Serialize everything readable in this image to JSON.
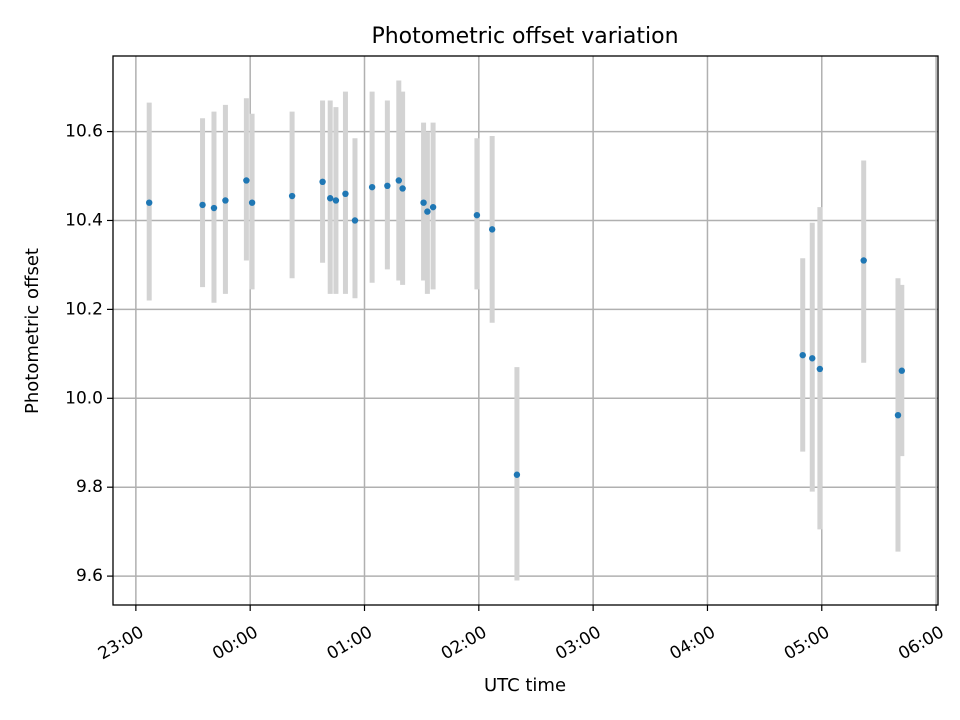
{
  "chart_data": {
    "type": "scatter",
    "title": "Photometric offset variation",
    "xlabel": "UTC time",
    "ylabel": "Photometric offset",
    "x_tick_labels": [
      "23:00",
      "00:00",
      "01:00",
      "02:00",
      "03:00",
      "04:00",
      "05:00",
      "06:00"
    ],
    "y_tick_labels": [
      "9.6",
      "9.8",
      "10.0",
      "10.2",
      "10.4",
      "10.6"
    ],
    "x_ticks": [
      "23:00",
      "24:00",
      "25:00",
      "26:00",
      "27:00",
      "28:00",
      "29:00",
      "30:00"
    ],
    "y_ticks": [
      9.6,
      9.8,
      10.0,
      10.2,
      10.4,
      10.6
    ],
    "xlim": [
      "22:48",
      "30:01"
    ],
    "ylim": [
      9.535,
      10.77
    ],
    "grid": true,
    "colors": {
      "point": "#1f77b4",
      "errorbar": "#d3d3d3"
    },
    "points": [
      {
        "x": "23:07",
        "y": 10.44,
        "ylow": 10.22,
        "yhigh": 10.665
      },
      {
        "x": "23:35",
        "y": 10.435,
        "ylow": 10.25,
        "yhigh": 10.63
      },
      {
        "x": "23:41",
        "y": 10.428,
        "ylow": 10.215,
        "yhigh": 10.645
      },
      {
        "x": "23:47",
        "y": 10.445,
        "ylow": 10.235,
        "yhigh": 10.66
      },
      {
        "x": "23:58",
        "y": 10.49,
        "ylow": 10.31,
        "yhigh": 10.675
      },
      {
        "x": "24:01",
        "y": 10.44,
        "ylow": 10.245,
        "yhigh": 10.64
      },
      {
        "x": "24:22",
        "y": 10.455,
        "ylow": 10.27,
        "yhigh": 10.645
      },
      {
        "x": "24:38",
        "y": 10.487,
        "ylow": 10.305,
        "yhigh": 10.67
      },
      {
        "x": "24:42",
        "y": 10.45,
        "ylow": 10.235,
        "yhigh": 10.67
      },
      {
        "x": "24:45",
        "y": 10.445,
        "ylow": 10.235,
        "yhigh": 10.655
      },
      {
        "x": "24:50",
        "y": 10.46,
        "ylow": 10.235,
        "yhigh": 10.69
      },
      {
        "x": "24:55",
        "y": 10.4,
        "ylow": 10.225,
        "yhigh": 10.585
      },
      {
        "x": "25:04",
        "y": 10.475,
        "ylow": 10.26,
        "yhigh": 10.69
      },
      {
        "x": "25:12",
        "y": 10.478,
        "ylow": 10.29,
        "yhigh": 10.67
      },
      {
        "x": "25:18",
        "y": 10.49,
        "ylow": 10.265,
        "yhigh": 10.715
      },
      {
        "x": "25:20",
        "y": 10.472,
        "ylow": 10.255,
        "yhigh": 10.69
      },
      {
        "x": "25:31",
        "y": 10.44,
        "ylow": 10.265,
        "yhigh": 10.62
      },
      {
        "x": "25:33",
        "y": 10.42,
        "ylow": 10.235,
        "yhigh": 10.6
      },
      {
        "x": "25:36",
        "y": 10.43,
        "ylow": 10.245,
        "yhigh": 10.62
      },
      {
        "x": "25:59",
        "y": 10.412,
        "ylow": 10.245,
        "yhigh": 10.585
      },
      {
        "x": "26:07",
        "y": 10.38,
        "ylow": 10.17,
        "yhigh": 10.59
      },
      {
        "x": "26:20",
        "y": 9.828,
        "ylow": 9.59,
        "yhigh": 10.07
      },
      {
        "x": "28:50",
        "y": 10.097,
        "ylow": 9.88,
        "yhigh": 10.315
      },
      {
        "x": "28:55",
        "y": 10.09,
        "ylow": 9.79,
        "yhigh": 10.395
      },
      {
        "x": "28:59",
        "y": 10.066,
        "ylow": 9.705,
        "yhigh": 10.43
      },
      {
        "x": "29:22",
        "y": 10.31,
        "ylow": 10.08,
        "yhigh": 10.535
      },
      {
        "x": "29:40",
        "y": 9.962,
        "ylow": 9.655,
        "yhigh": 10.27
      },
      {
        "x": "29:42",
        "y": 10.062,
        "ylow": 9.87,
        "yhigh": 10.255
      }
    ]
  }
}
